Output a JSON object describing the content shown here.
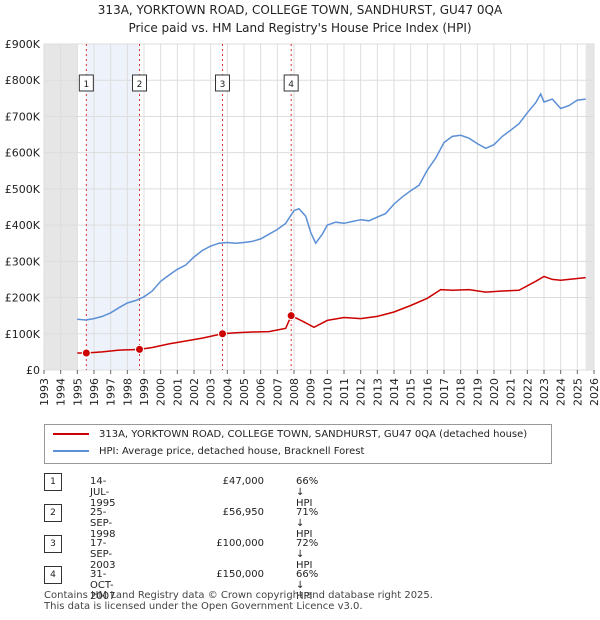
{
  "title": "313A, YORKTOWN ROAD, COLLEGE TOWN, SANDHURST, GU47 0QA",
  "subtitle": "Price paid vs. HM Land Registry's House Price Index (HPI)",
  "chart_data": {
    "type": "line",
    "x_range": [
      1993,
      2026
    ],
    "y_range": [
      0,
      900000
    ],
    "y_ticks": [
      0,
      100000,
      200000,
      300000,
      400000,
      500000,
      600000,
      700000,
      800000,
      900000
    ],
    "y_tick_labels": [
      "£0",
      "£100K",
      "£200K",
      "£300K",
      "£400K",
      "£500K",
      "£600K",
      "£700K",
      "£800K",
      "£900K"
    ],
    "x_ticks": [
      1993,
      1994,
      1995,
      1996,
      1997,
      1998,
      1999,
      2000,
      2001,
      2002,
      2003,
      2004,
      2005,
      2006,
      2007,
      2008,
      2009,
      2010,
      2011,
      2012,
      2013,
      2014,
      2015,
      2016,
      2017,
      2018,
      2019,
      2020,
      2021,
      2022,
      2023,
      2024,
      2025,
      2026
    ],
    "x_tick_labels": [
      "1993",
      "1994",
      "1995",
      "1996",
      "1997",
      "1998",
      "1999",
      "2000",
      "2001",
      "2002",
      "2003",
      "2004",
      "2005",
      "2006",
      "2007",
      "2008",
      "2009",
      "2010",
      "2011",
      "2012",
      "2013",
      "2014",
      "2015",
      "2016",
      "2017",
      "2018",
      "2019",
      "2020",
      "2021",
      "2022",
      "2023",
      "2024",
      "2025",
      "2026"
    ],
    "data_start": 1995.0,
    "data_end": 2025.5,
    "grid": true,
    "series": [
      {
        "name": "313A, YORKTOWN ROAD, COLLEGE TOWN, SANDHURST, GU47 0QA (detached house)",
        "color": "#cc0000",
        "x": [
          1995.0,
          1995.54,
          1996.5,
          1997.5,
          1998.73,
          1999.5,
          2000.5,
          2001.5,
          2002.5,
          2003.71,
          2004.5,
          2005.5,
          2006.5,
          2007.5,
          2007.83,
          2008.5,
          2009.2,
          2010.0,
          2011.0,
          2012.0,
          2013.0,
          2014.0,
          2015.0,
          2016.0,
          2016.8,
          2017.5,
          2018.5,
          2019.5,
          2020.5,
          2021.5,
          2022.5,
          2023.0,
          2023.5,
          2024.0,
          2024.5,
          2025.5
        ],
        "y": [
          47000,
          47000,
          50000,
          55000,
          56950,
          62000,
          72000,
          80000,
          88000,
          100000,
          103000,
          105000,
          106000,
          115000,
          150000,
          135000,
          118000,
          137000,
          145000,
          142000,
          148000,
          160000,
          178000,
          198000,
          222000,
          220000,
          222000,
          215000,
          218000,
          220000,
          245000,
          258000,
          250000,
          248000,
          250000,
          255000
        ]
      },
      {
        "name": "HPI: Average price, detached house, Bracknell Forest",
        "color": "#5b8fd6",
        "x": [
          1995.0,
          1995.5,
          1996.0,
          1996.5,
          1997.0,
          1997.5,
          1998.0,
          1998.5,
          1999.0,
          1999.5,
          2000.0,
          2000.5,
          2001.0,
          2001.5,
          2002.0,
          2002.5,
          2003.0,
          2003.5,
          2004.0,
          2004.5,
          2005.0,
          2005.5,
          2006.0,
          2006.5,
          2007.0,
          2007.5,
          2008.0,
          2008.3,
          2008.7,
          2009.0,
          2009.3,
          2009.7,
          2010.0,
          2010.5,
          2011.0,
          2011.5,
          2012.0,
          2012.5,
          2013.0,
          2013.5,
          2014.0,
          2014.5,
          2015.0,
          2015.5,
          2016.0,
          2016.5,
          2017.0,
          2017.5,
          2018.0,
          2018.5,
          2019.0,
          2019.5,
          2020.0,
          2020.5,
          2021.0,
          2021.5,
          2022.0,
          2022.5,
          2022.8,
          2023.0,
          2023.5,
          2024.0,
          2024.5,
          2025.0,
          2025.5
        ],
        "y": [
          140000,
          138000,
          142000,
          148000,
          158000,
          172000,
          185000,
          192000,
          202000,
          218000,
          245000,
          262000,
          278000,
          290000,
          312000,
          330000,
          342000,
          350000,
          352000,
          350000,
          352000,
          355000,
          362000,
          375000,
          388000,
          405000,
          440000,
          445000,
          425000,
          380000,
          350000,
          375000,
          400000,
          408000,
          405000,
          410000,
          415000,
          412000,
          422000,
          432000,
          458000,
          478000,
          495000,
          510000,
          552000,
          585000,
          628000,
          645000,
          648000,
          640000,
          625000,
          612000,
          622000,
          645000,
          662000,
          680000,
          710000,
          738000,
          762000,
          740000,
          748000,
          722000,
          730000,
          745000,
          748000
        ]
      }
    ],
    "sale_markers": [
      {
        "label": "1",
        "x": 1995.54,
        "y": 47000
      },
      {
        "label": "2",
        "x": 1998.73,
        "y": 56950
      },
      {
        "label": "3",
        "x": 2003.71,
        "y": 100000
      },
      {
        "label": "4",
        "x": 2007.83,
        "y": 150000
      }
    ]
  },
  "legend": [
    {
      "label": "313A, YORKTOWN ROAD, COLLEGE TOWN, SANDHURST, GU47 0QA (detached house)",
      "color": "#cc0000"
    },
    {
      "label": "HPI: Average price, detached house, Bracknell Forest",
      "color": "#5b8fd6"
    }
  ],
  "sales": [
    {
      "num": "1",
      "date": "14-JUL-1995",
      "price": "£47,000",
      "hpi": "66% ↓ HPI"
    },
    {
      "num": "2",
      "date": "25-SEP-1998",
      "price": "£56,950",
      "hpi": "71% ↓ HPI"
    },
    {
      "num": "3",
      "date": "17-SEP-2003",
      "price": "£100,000",
      "hpi": "72% ↓ HPI"
    },
    {
      "num": "4",
      "date": "31-OCT-2007",
      "price": "£150,000",
      "hpi": "66% ↓ HPI"
    }
  ],
  "footer": {
    "line1": "Contains HM Land Registry data © Crown copyright and database right 2025.",
    "line2": "This data is licensed under the Open Government Licence v3.0."
  }
}
